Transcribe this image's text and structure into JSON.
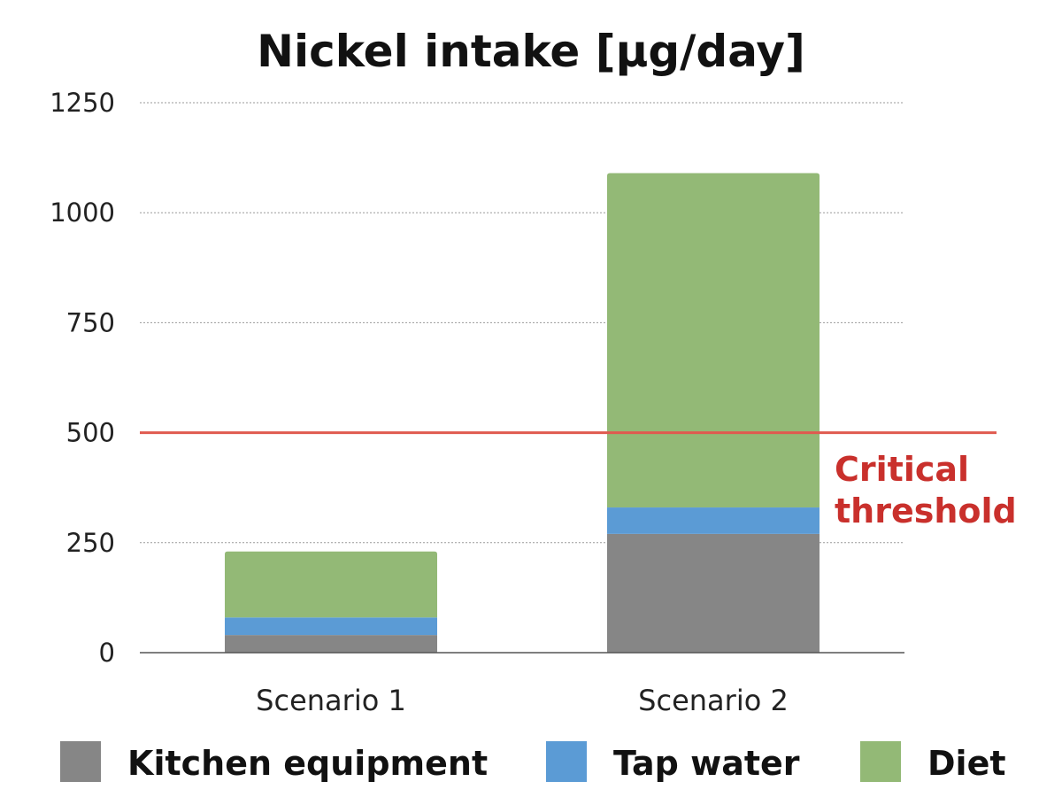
{
  "chart_data": {
    "type": "bar",
    "stacked": true,
    "title": "Nickel intake [µg/day]",
    "xlabel": "",
    "ylabel": "",
    "categories": [
      "Scenario 1",
      "Scenario 2"
    ],
    "series": [
      {
        "name": "Kitchen equipment",
        "values": [
          40,
          270
        ],
        "color": "#868686"
      },
      {
        "name": "Tap water",
        "values": [
          40,
          60
        ],
        "color": "#5b9bd5"
      },
      {
        "name": "Diet",
        "values": [
          150,
          760
        ],
        "color": "#93b976"
      }
    ],
    "ylim": [
      0,
      1250
    ],
    "yticks": [
      0,
      250,
      500,
      750,
      1000,
      1250
    ],
    "grid": true,
    "legend_position": "bottom",
    "reference_line": {
      "value": 500,
      "label_lines": [
        "Critical",
        "threshold"
      ],
      "color": "#e05a4f",
      "label_color": "#c9302c"
    }
  }
}
